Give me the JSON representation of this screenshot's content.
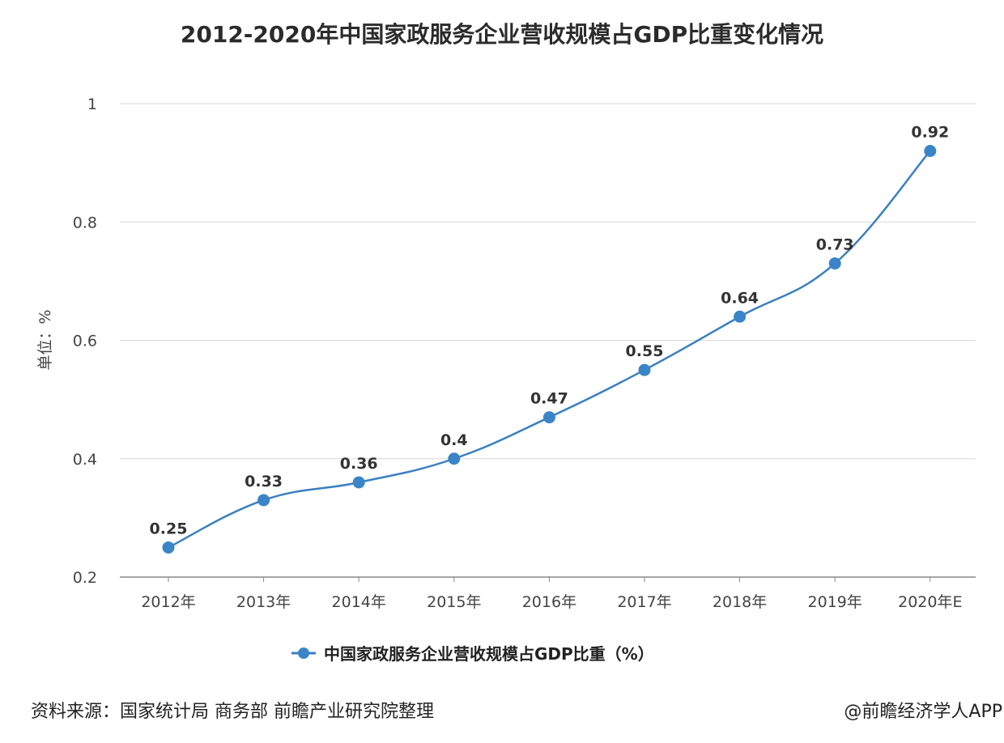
{
  "chart_data": {
    "type": "line",
    "title": "2012-2020年中国家政服务企业营收规模占GDP比重变化情况",
    "ylabel": "单位：%",
    "xlabel": "",
    "categories": [
      "2012年",
      "2013年",
      "2014年",
      "2015年",
      "2016年",
      "2017年",
      "2018年",
      "2019年",
      "2020年E"
    ],
    "series": [
      {
        "name": "中国家政服务企业营收规模占GDP比重（%）",
        "values": [
          0.25,
          0.33,
          0.36,
          0.4,
          0.47,
          0.55,
          0.64,
          0.73,
          0.92
        ],
        "labels": [
          "0.25",
          "0.33",
          "0.36",
          "0.4",
          "0.47",
          "0.55",
          "0.64",
          "0.73",
          "0.92"
        ]
      }
    ],
    "ylim": [
      0.2,
      1.0
    ],
    "yticks": [
      0.2,
      0.4,
      0.6,
      0.8,
      1.0
    ],
    "ytick_labels": [
      "0.2",
      "0.4",
      "0.6",
      "0.8",
      "1"
    ],
    "grid": true,
    "legend_position": "bottom-center",
    "colors": {
      "series": "#3a7fc1",
      "marker": "#3a85c8",
      "grid": "#d9d9d9",
      "axis": "#888888"
    }
  },
  "footer": {
    "source": "资料来源：国家统计局 商务部 前瞻产业研究院整理",
    "credit": "@前瞻经济学人APP"
  }
}
